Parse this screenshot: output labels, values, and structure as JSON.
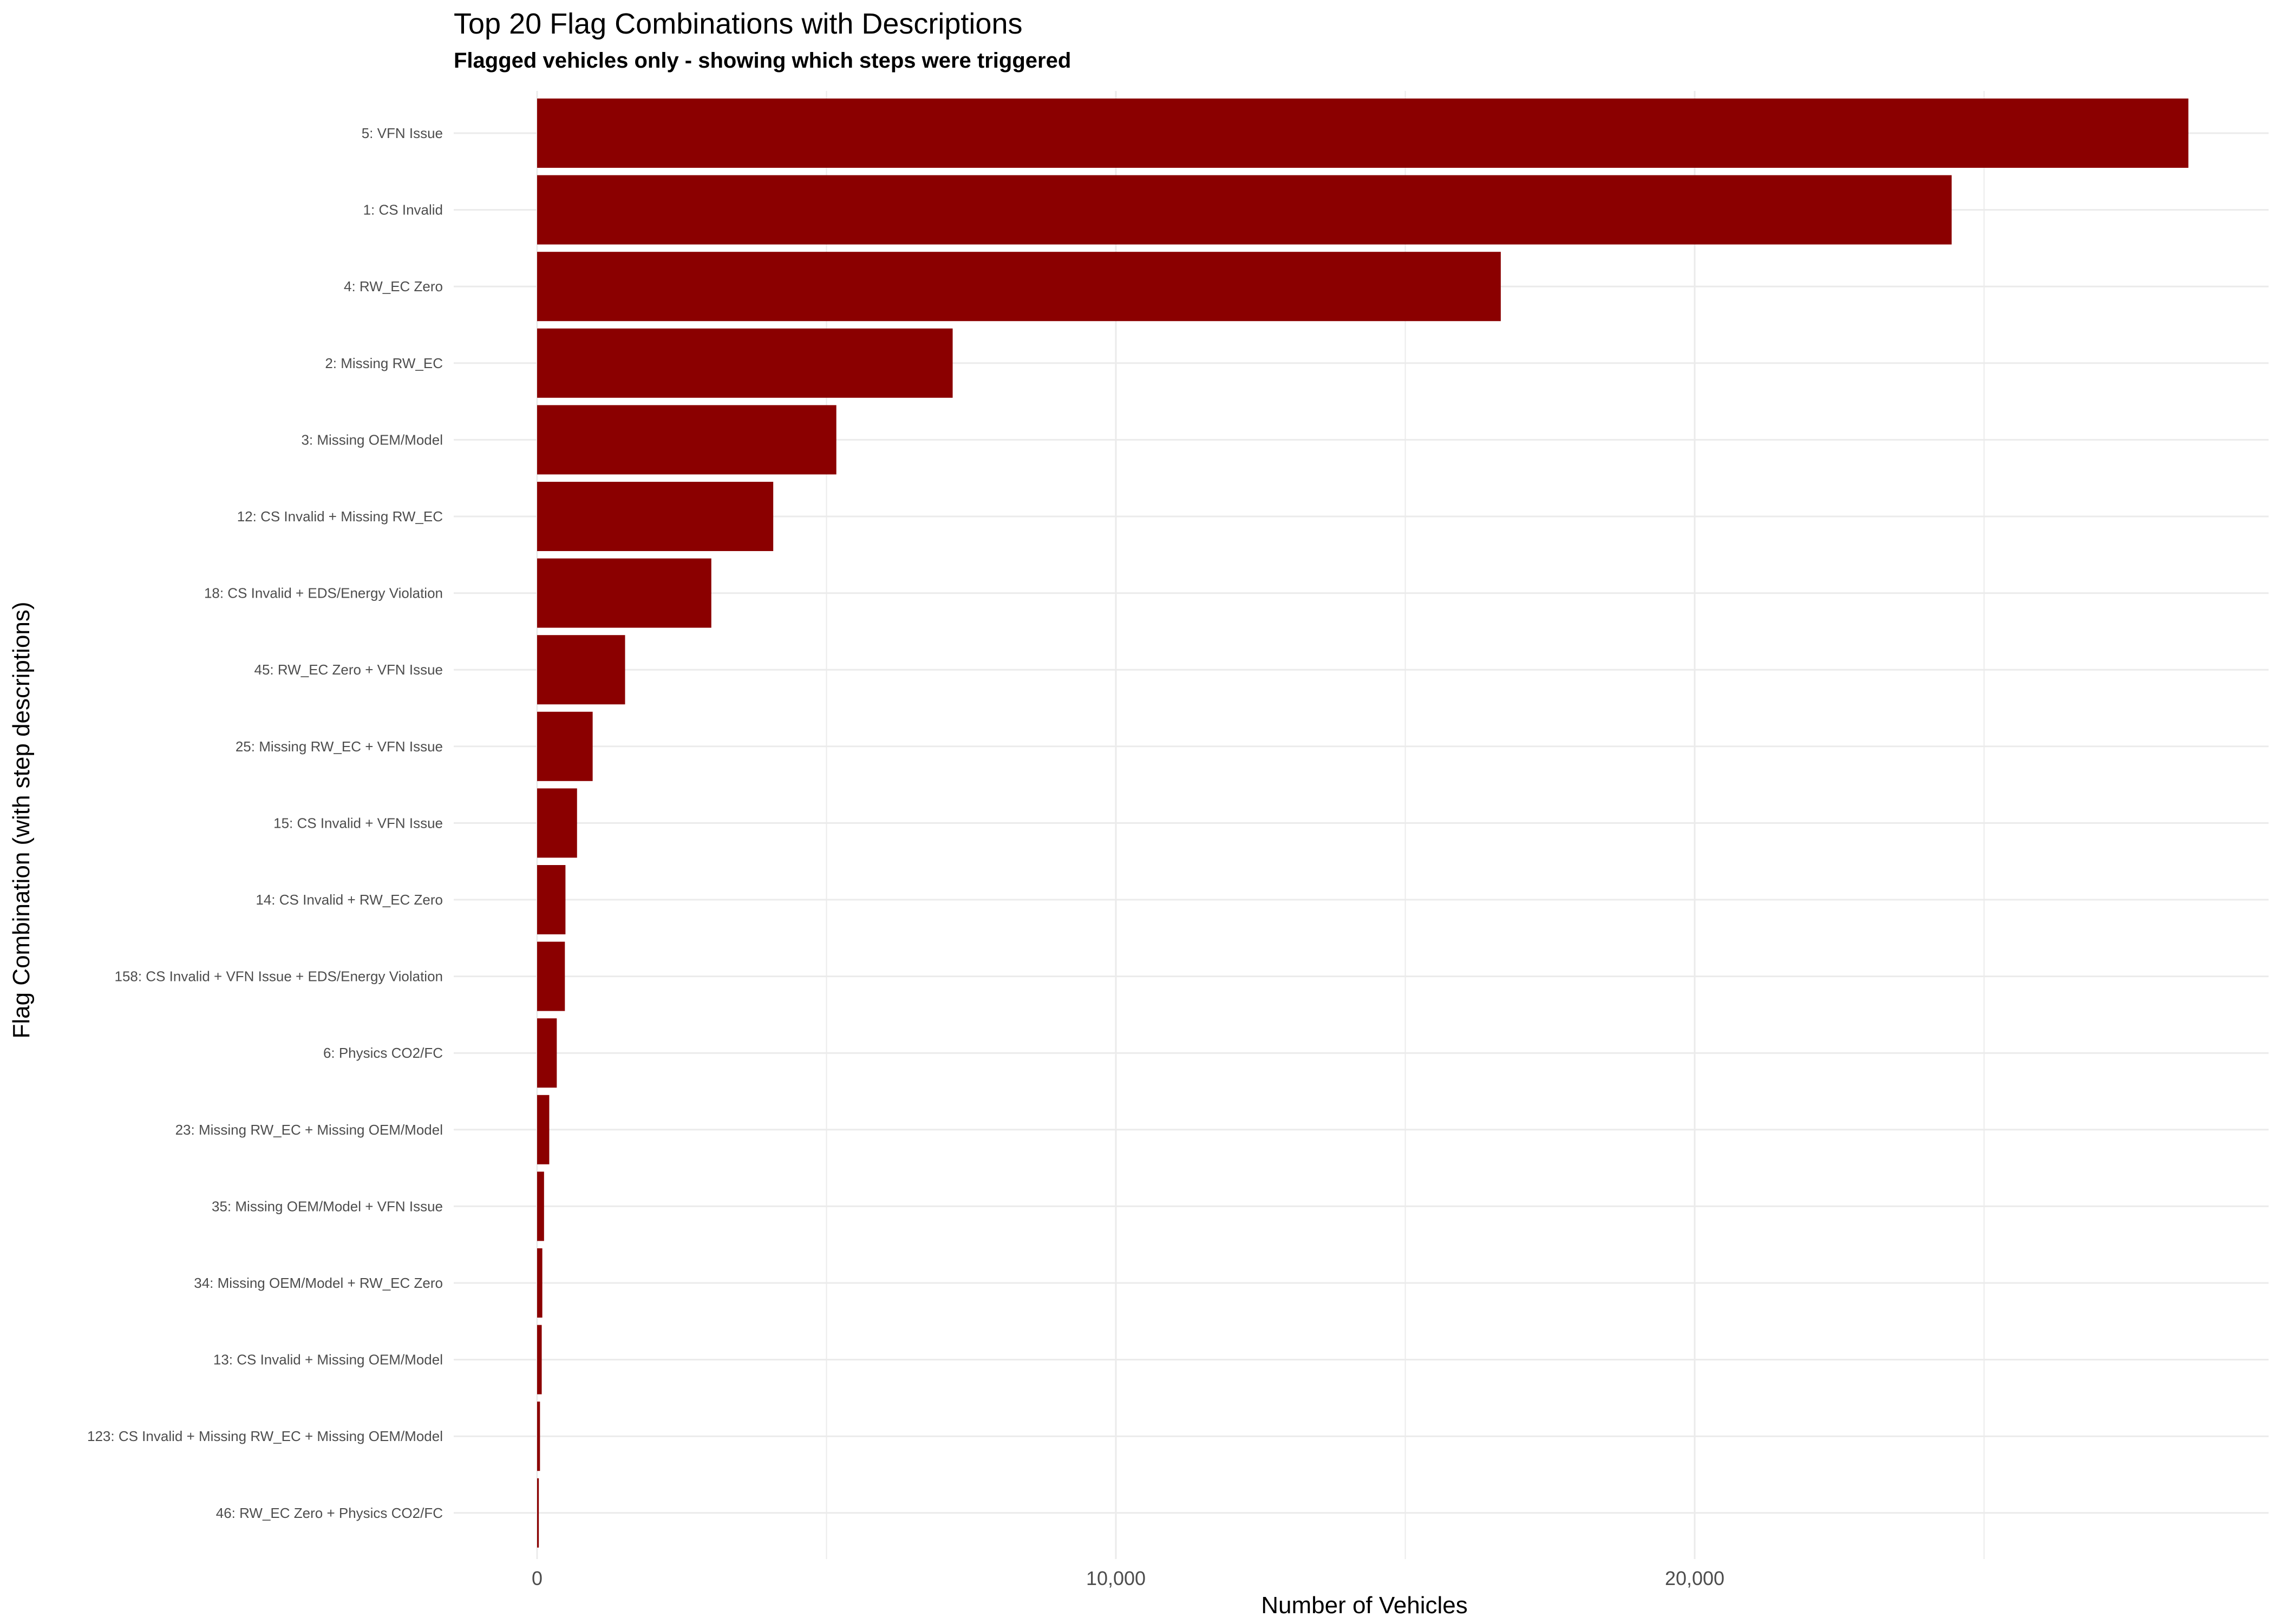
{
  "chart_data": {
    "type": "bar",
    "orientation": "horizontal",
    "title": "Top 20 Flag Combinations with Descriptions",
    "subtitle": "Flagged vehicles only - showing which steps were triggered",
    "xlabel": "Number of Vehicles",
    "ylabel": "Flag Combination (with step descriptions)",
    "xlim": [
      -1400,
      29000
    ],
    "x_ticks": [
      {
        "value": 0,
        "label": "0"
      },
      {
        "value": 10000,
        "label": "10,000"
      },
      {
        "value": 20000,
        "label": "20,000"
      }
    ],
    "x_minor_ticks": [
      5000,
      15000,
      25000
    ],
    "grid": true,
    "bar_color": "#8B0000",
    "categories": [
      "5: VFN Issue",
      "1: CS Invalid",
      "4: RW_EC Zero",
      "2: Missing RW_EC",
      "3: Missing OEM/Model",
      "12: CS Invalid + Missing RW_EC",
      "18: CS Invalid + EDS/Energy Violation",
      "45: RW_EC Zero + VFN Issue",
      "25: Missing RW_EC + VFN Issue",
      "15: CS Invalid + VFN Issue",
      "14: CS Invalid + RW_EC Zero",
      "158: CS Invalid + VFN Issue + EDS/Energy Violation",
      "6: Physics CO2/FC",
      "23: Missing RW_EC + Missing OEM/Model",
      "35: Missing OEM/Model + VFN Issue",
      "34: Missing OEM/Model + RW_EC Zero",
      "13: CS Invalid + Missing OEM/Model",
      "123: CS Invalid + Missing RW_EC + Missing OEM/Model",
      "46: RW_EC Zero + Physics CO2/FC"
    ],
    "values": [
      28530,
      24440,
      16650,
      7180,
      5170,
      4080,
      3010,
      1520,
      960,
      690,
      490,
      480,
      340,
      210,
      120,
      90,
      80,
      50,
      30
    ]
  }
}
